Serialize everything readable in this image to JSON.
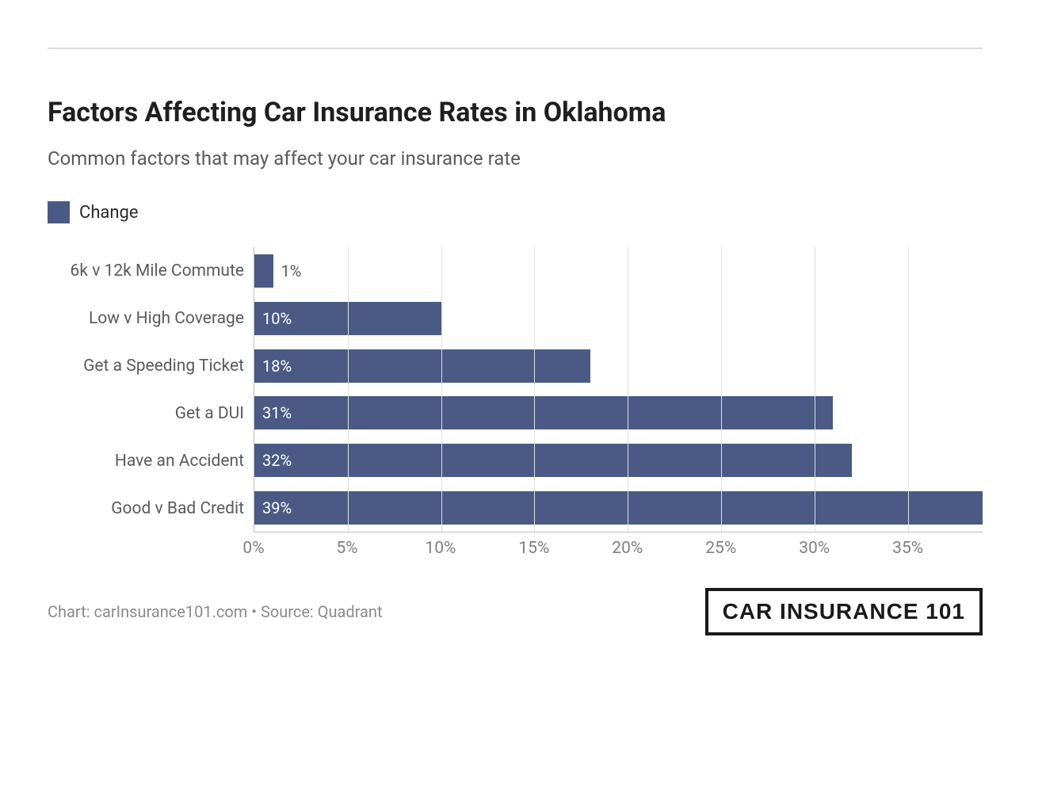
{
  "chart": {
    "type": "bar-horizontal",
    "title": "Factors Affecting Car Insurance Rates in Oklahoma",
    "subtitle": "Common factors that may affect your car insurance rate",
    "title_fontsize": 34,
    "subtitle_fontsize": 24,
    "title_color": "#1f1f1f",
    "subtitle_color": "#5a5a5a",
    "legend": {
      "label": "Change",
      "swatch_color": "#4a5a84"
    },
    "categories": [
      "6k v 12k Mile Commute",
      "Low v High Coverage",
      "Get a Speeding Ticket",
      "Get a DUI",
      "Have an Accident",
      "Good v Bad Credit"
    ],
    "values": [
      1,
      10,
      18,
      31,
      32,
      39
    ],
    "value_labels": [
      "1%",
      "10%",
      "18%",
      "31%",
      "32%",
      "39%"
    ],
    "label_inside": [
      false,
      true,
      true,
      true,
      true,
      true
    ],
    "bar_color": "#4a5a84",
    "bar_label_inside_color": "#ffffff",
    "bar_label_outside_color": "#5a5a5a",
    "x_axis": {
      "min": 0,
      "max": 39,
      "ticks": [
        0,
        5,
        10,
        15,
        20,
        25,
        30,
        35
      ],
      "tick_labels": [
        "0%",
        "5%",
        "10%",
        "15%",
        "20%",
        "25%",
        "30%",
        "35%"
      ]
    },
    "axis_label_color": "#808080",
    "axis_label_fontsize": 21,
    "y_label_color": "#5a5a5a",
    "grid_color": "#e0e0e0",
    "axis_line_color": "#bdbdbd",
    "background_color": "#ffffff"
  },
  "footer": {
    "source": "Chart: carInsurance101.com • Source: Quadrant",
    "source_color": "#8a8a8a",
    "brand": "CAR INSURANCE 101",
    "brand_border_color": "#1a1a1a",
    "brand_text_color": "#1a1a1a"
  }
}
